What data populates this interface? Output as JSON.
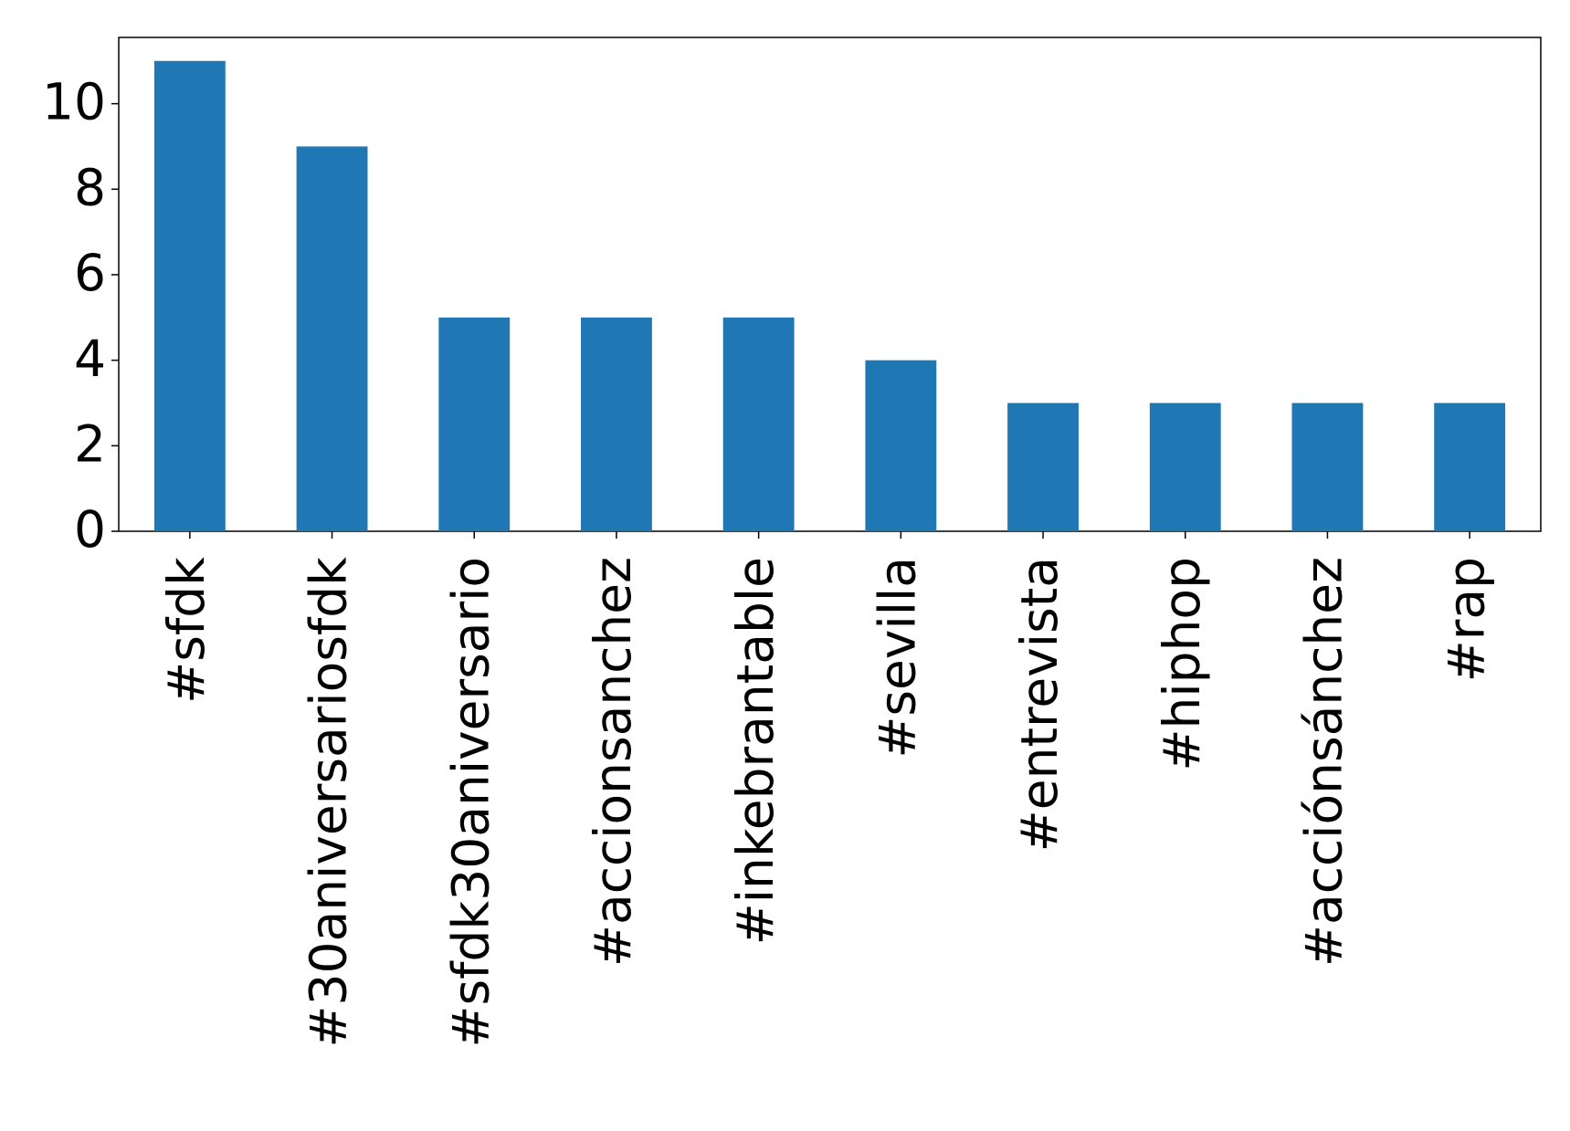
{
  "chart_data": {
    "type": "bar",
    "categories": [
      "#sfdk",
      "#30aniversariosfdk",
      "#sfdk30aniversario",
      "#accionsanchez",
      "#inkebrantable",
      "#sevilla",
      "#entrevista",
      "#hiphop",
      "#acciónsánchez",
      "#rap"
    ],
    "values": [
      11,
      9,
      5,
      5,
      5,
      4,
      3,
      3,
      3,
      3
    ],
    "color": "#1f77b4",
    "ylim": [
      0,
      11.55
    ],
    "yticks": [
      0,
      2,
      4,
      6,
      8,
      10
    ],
    "grid": false
  }
}
